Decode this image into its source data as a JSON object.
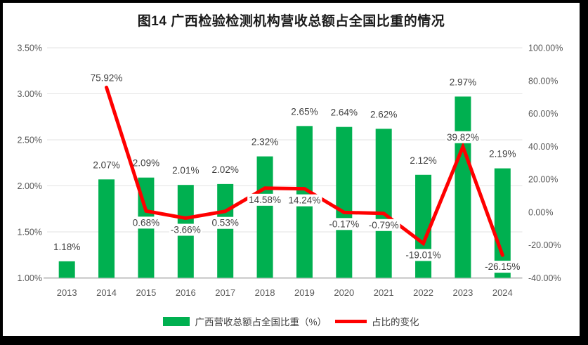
{
  "title": "图14 广西检验检测机构营收总额占全国比重的情况",
  "legend": [
    {
      "type": "bar",
      "label": "广西营收总额占全国比重（%）"
    },
    {
      "type": "line",
      "label": "占比的变化"
    }
  ],
  "colors": {
    "bar": "#00B050",
    "line": "#FF0000",
    "gridline": "#E3E3E3",
    "axis_line": "#D6D6D6",
    "axis_text": "#595959",
    "label_text": "#404040",
    "frame_border": "#000000"
  },
  "chart_data": {
    "type": "combo-bar-line",
    "title": "图14 广西检验检测机构营收总额占全国比重的情况",
    "categories": [
      "2013",
      "2014",
      "2015",
      "2016",
      "2017",
      "2018",
      "2019",
      "2020",
      "2021",
      "2022",
      "2023",
      "2024"
    ],
    "series": [
      {
        "name": "广西营收总额占全国比重（%）",
        "type": "bar",
        "axis": "left",
        "values": [
          1.18,
          2.07,
          2.09,
          2.01,
          2.02,
          2.32,
          2.65,
          2.64,
          2.62,
          2.12,
          2.97,
          2.19
        ],
        "labels": [
          "1.18%",
          "2.07%",
          "2.09%",
          "2.01%",
          "2.02%",
          "2.32%",
          "2.65%",
          "2.64%",
          "2.62%",
          "2.12%",
          "2.97%",
          "2.19%"
        ]
      },
      {
        "name": "占比的变化",
        "type": "line",
        "axis": "right",
        "values": [
          null,
          75.92,
          0.68,
          -3.66,
          0.53,
          14.58,
          14.24,
          -0.17,
          -0.79,
          -19.01,
          39.82,
          -26.15
        ],
        "labels": [
          null,
          "75.92%",
          "0.68%",
          "-3.66%",
          "0.53%",
          "14.58%",
          "14.24%",
          "-0.17%",
          "-0.79%",
          "-19.01%",
          "39.82%",
          "-26.15%"
        ],
        "label_positions": [
          null,
          "above",
          "below",
          "below",
          "below",
          "below",
          "below",
          "below",
          "below",
          "below",
          "above",
          "below"
        ]
      }
    ],
    "left_axis": {
      "min": 1.0,
      "max": 3.5,
      "tick_values": [
        1.0,
        1.5,
        2.0,
        2.5,
        3.0,
        3.5
      ],
      "tick_labels": [
        "1.00%",
        "1.50%",
        "2.00%",
        "2.50%",
        "3.00%",
        "3.50%"
      ]
    },
    "right_axis": {
      "min": -40,
      "max": 100,
      "tick_values": [
        -40,
        -20,
        0,
        20,
        40,
        60,
        80,
        100
      ],
      "tick_labels": [
        "-40.00%",
        "-20.00%",
        "0.00%",
        "20.00%",
        "40.00%",
        "60.00%",
        "80.00%",
        "100.00%"
      ]
    },
    "grid": true,
    "legend_position": "bottom"
  }
}
